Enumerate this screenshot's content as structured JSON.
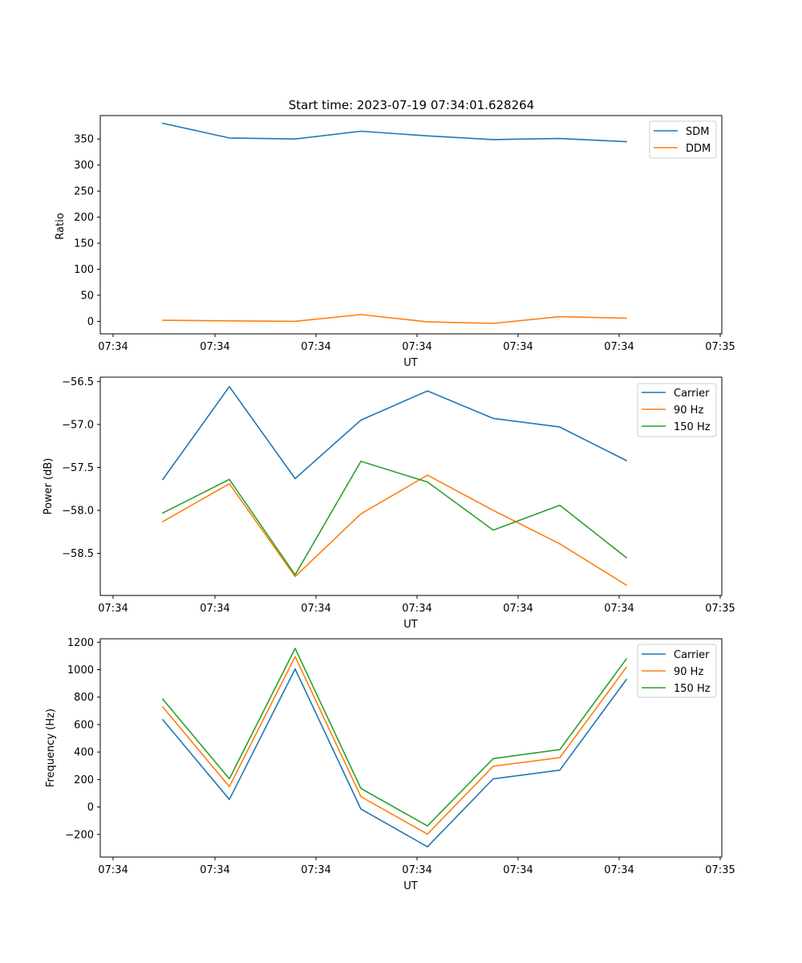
{
  "figure_title": "Start time: 2023-07-19 07:34:01.628264",
  "colors": {
    "blue": "#1f77b4",
    "orange": "#ff7f0e",
    "green": "#2ca02c"
  },
  "chart_data": [
    {
      "type": "line",
      "title": "Start time: 2023-07-19 07:34:01.628264",
      "xlabel": "UT",
      "ylabel": "Ratio",
      "x_tick_labels": [
        "07:34",
        "07:34",
        "07:34",
        "07:34",
        "07:34",
        "07:34",
        "07:35"
      ],
      "y_ticks": [
        0,
        50,
        100,
        150,
        200,
        250,
        300,
        350
      ],
      "ylim": [
        -24,
        395
      ],
      "legend": "top-right",
      "grid": false,
      "series": [
        {
          "name": "SDM",
          "color": "#1f77b4",
          "values": [
            380,
            352,
            350,
            365,
            356,
            349,
            351,
            345
          ]
        },
        {
          "name": "DDM",
          "color": "#ff7f0e",
          "values": [
            2,
            1,
            0,
            13,
            -1,
            -4,
            9,
            6
          ]
        }
      ]
    },
    {
      "type": "line",
      "title": "",
      "xlabel": "UT",
      "ylabel": "Power (dB)",
      "x_tick_labels": [
        "07:34",
        "07:34",
        "07:34",
        "07:34",
        "07:34",
        "07:34",
        "07:35"
      ],
      "y_ticks": [
        -58.5,
        -58.0,
        -57.5,
        -57.0,
        -56.5
      ],
      "ylim": [
        -58.99,
        -56.45
      ],
      "legend": "top-right",
      "grid": false,
      "series": [
        {
          "name": "Carrier",
          "color": "#1f77b4",
          "values": [
            -57.64,
            -56.56,
            -57.63,
            -56.95,
            -56.61,
            -56.93,
            -57.03,
            -57.42
          ]
        },
        {
          "name": "90 Hz",
          "color": "#ff7f0e",
          "values": [
            -58.13,
            -57.69,
            -58.77,
            -58.04,
            -57.59,
            -58.0,
            -58.39,
            -58.87
          ]
        },
        {
          "name": "150 Hz",
          "color": "#2ca02c",
          "values": [
            -58.03,
            -57.64,
            -58.75,
            -57.43,
            -57.67,
            -58.23,
            -57.94,
            -58.55
          ]
        }
      ]
    },
    {
      "type": "line",
      "title": "",
      "xlabel": "UT",
      "ylabel": "Frequency (Hz)",
      "x_tick_labels": [
        "07:34",
        "07:34",
        "07:34",
        "07:34",
        "07:34",
        "07:34",
        "07:35"
      ],
      "y_ticks": [
        -200,
        0,
        200,
        400,
        600,
        800,
        1000,
        1200
      ],
      "ylim": [
        -365,
        1225
      ],
      "legend": "top-right",
      "grid": false,
      "series": [
        {
          "name": "Carrier",
          "color": "#1f77b4",
          "values": [
            635,
            55,
            1005,
            -15,
            -290,
            205,
            268,
            928
          ]
        },
        {
          "name": "90 Hz",
          "color": "#ff7f0e",
          "values": [
            728,
            148,
            1095,
            75,
            -198,
            297,
            359,
            1018
          ]
        },
        {
          "name": "150 Hz",
          "color": "#2ca02c",
          "values": [
            785,
            205,
            1155,
            135,
            -138,
            352,
            418,
            1078
          ]
        }
      ]
    }
  ]
}
